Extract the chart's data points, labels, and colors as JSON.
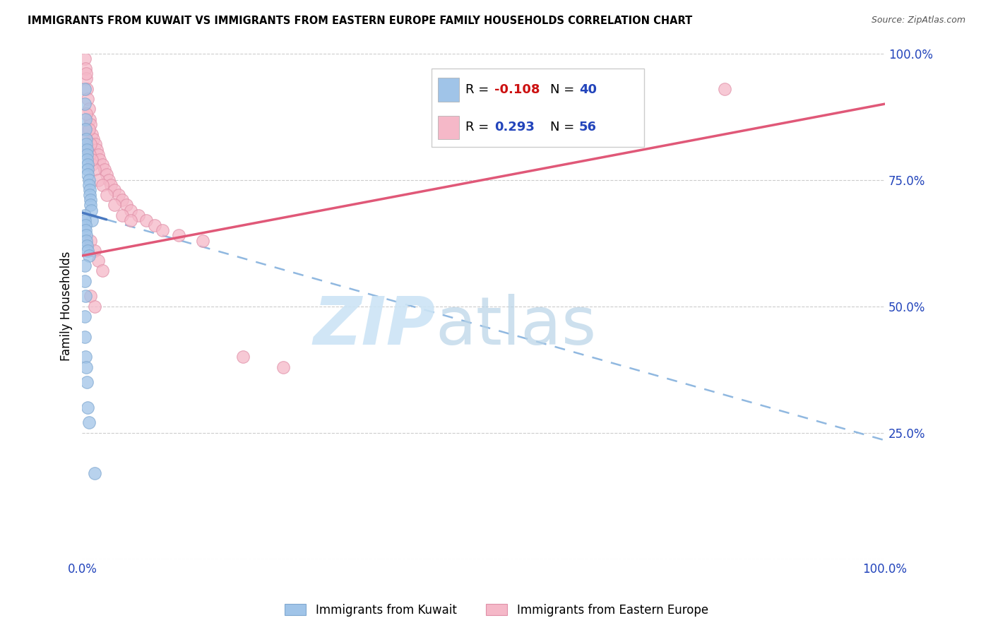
{
  "title": "IMMIGRANTS FROM KUWAIT VS IMMIGRANTS FROM EASTERN EUROPE FAMILY HOUSEHOLDS CORRELATION CHART",
  "source": "Source: ZipAtlas.com",
  "ylabel": "Family Households",
  "x_min": 0.0,
  "x_max": 1.0,
  "y_min": 0.0,
  "y_max": 1.0,
  "kuwait_color": "#a0c4e8",
  "eastern_color": "#f5b8c8",
  "kuwait_edge": "#80a8d0",
  "eastern_edge": "#e090a8",
  "kuwait_R": -0.108,
  "kuwait_N": 40,
  "eastern_R": 0.293,
  "eastern_N": 56,
  "trend_blue_solid": "#4878c0",
  "trend_blue_dash": "#90b8e0",
  "trend_pink_solid": "#e05878",
  "grid_color": "#cccccc",
  "tick_color": "#2244bb",
  "kuwait_x": [
    0.003,
    0.003,
    0.004,
    0.004,
    0.005,
    0.005,
    0.006,
    0.006,
    0.006,
    0.007,
    0.007,
    0.007,
    0.008,
    0.008,
    0.009,
    0.009,
    0.01,
    0.01,
    0.011,
    0.012,
    0.003,
    0.003,
    0.004,
    0.004,
    0.005,
    0.005,
    0.006,
    0.007,
    0.008,
    0.003,
    0.003,
    0.004,
    0.003,
    0.003,
    0.004,
    0.005,
    0.006,
    0.007,
    0.008,
    0.015
  ],
  "kuwait_y": [
    0.93,
    0.9,
    0.87,
    0.85,
    0.83,
    0.82,
    0.81,
    0.8,
    0.79,
    0.78,
    0.77,
    0.76,
    0.75,
    0.74,
    0.73,
    0.72,
    0.71,
    0.7,
    0.69,
    0.67,
    0.68,
    0.67,
    0.66,
    0.65,
    0.64,
    0.63,
    0.62,
    0.61,
    0.6,
    0.58,
    0.55,
    0.52,
    0.48,
    0.44,
    0.4,
    0.38,
    0.35,
    0.3,
    0.27,
    0.17
  ],
  "eastern_x": [
    0.003,
    0.004,
    0.005,
    0.006,
    0.007,
    0.008,
    0.009,
    0.01,
    0.012,
    0.014,
    0.016,
    0.018,
    0.02,
    0.022,
    0.025,
    0.028,
    0.03,
    0.033,
    0.036,
    0.04,
    0.045,
    0.05,
    0.055,
    0.06,
    0.07,
    0.08,
    0.09,
    0.1,
    0.12,
    0.15,
    0.003,
    0.005,
    0.007,
    0.009,
    0.012,
    0.015,
    0.02,
    0.025,
    0.03,
    0.04,
    0.05,
    0.06,
    0.01,
    0.015,
    0.02,
    0.025,
    0.2,
    0.25,
    0.01,
    0.015,
    0.005,
    0.008,
    0.01,
    0.012,
    0.005,
    0.8
  ],
  "eastern_y": [
    0.99,
    0.97,
    0.95,
    0.93,
    0.91,
    0.89,
    0.87,
    0.86,
    0.84,
    0.83,
    0.82,
    0.81,
    0.8,
    0.79,
    0.78,
    0.77,
    0.76,
    0.75,
    0.74,
    0.73,
    0.72,
    0.71,
    0.7,
    0.69,
    0.68,
    0.67,
    0.66,
    0.65,
    0.64,
    0.63,
    0.85,
    0.83,
    0.81,
    0.8,
    0.78,
    0.77,
    0.75,
    0.74,
    0.72,
    0.7,
    0.68,
    0.67,
    0.63,
    0.61,
    0.59,
    0.57,
    0.4,
    0.38,
    0.52,
    0.5,
    0.88,
    0.85,
    0.82,
    0.79,
    0.96,
    0.93
  ],
  "k_trend_x0": 0.0,
  "k_trend_x1_solid": 0.03,
  "k_trend_x1_dash": 1.0,
  "k_trend_y0": 0.685,
  "k_trend_slope": -0.45,
  "e_trend_x0": 0.0,
  "e_trend_x1": 1.0,
  "e_trend_y0": 0.6,
  "e_trend_slope": 0.3
}
